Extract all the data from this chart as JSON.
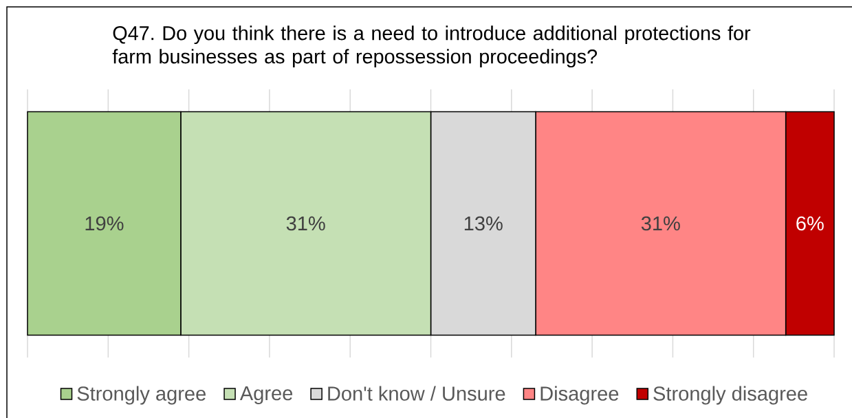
{
  "chart_data": {
    "type": "bar",
    "orientation": "horizontal",
    "stacked": true,
    "title": "Q47. Do you think there is a need to introduce additional protections for farm businesses as part of repossession proceedings?",
    "categories": [
      null
    ],
    "series": [
      {
        "name": "Strongly agree",
        "color": "#a9d18e",
        "values": [
          19
        ],
        "value_labels": [
          "19%"
        ]
      },
      {
        "name": "Agree",
        "color": "#c5e0b4",
        "values": [
          31
        ],
        "value_labels": [
          "31%"
        ]
      },
      {
        "name": "Don't know / Unsure",
        "color": "#d9d9d9",
        "values": [
          13
        ],
        "value_labels": [
          "13%"
        ]
      },
      {
        "name": "Disagree",
        "color": "#ff8585",
        "values": [
          31
        ],
        "value_labels": [
          "31%"
        ]
      },
      {
        "name": "Strongly disagree",
        "color": "#c00000",
        "values": [
          6
        ],
        "value_labels": [
          "6%"
        ]
      }
    ],
    "xlim": [
      0,
      100
    ],
    "xticks": [
      {
        "value": 0,
        "label": null
      },
      {
        "value": 10,
        "label": null
      },
      {
        "value": 20,
        "label": null
      },
      {
        "value": 30,
        "label": null
      },
      {
        "value": 40,
        "label": null
      },
      {
        "value": 50,
        "label": null
      },
      {
        "value": 60,
        "label": null
      },
      {
        "value": 70,
        "label": null
      },
      {
        "value": 80,
        "label": null
      },
      {
        "value": 90,
        "label": null
      },
      {
        "value": 100,
        "label": null
      }
    ],
    "grid": "x",
    "legend": "bottom"
  }
}
